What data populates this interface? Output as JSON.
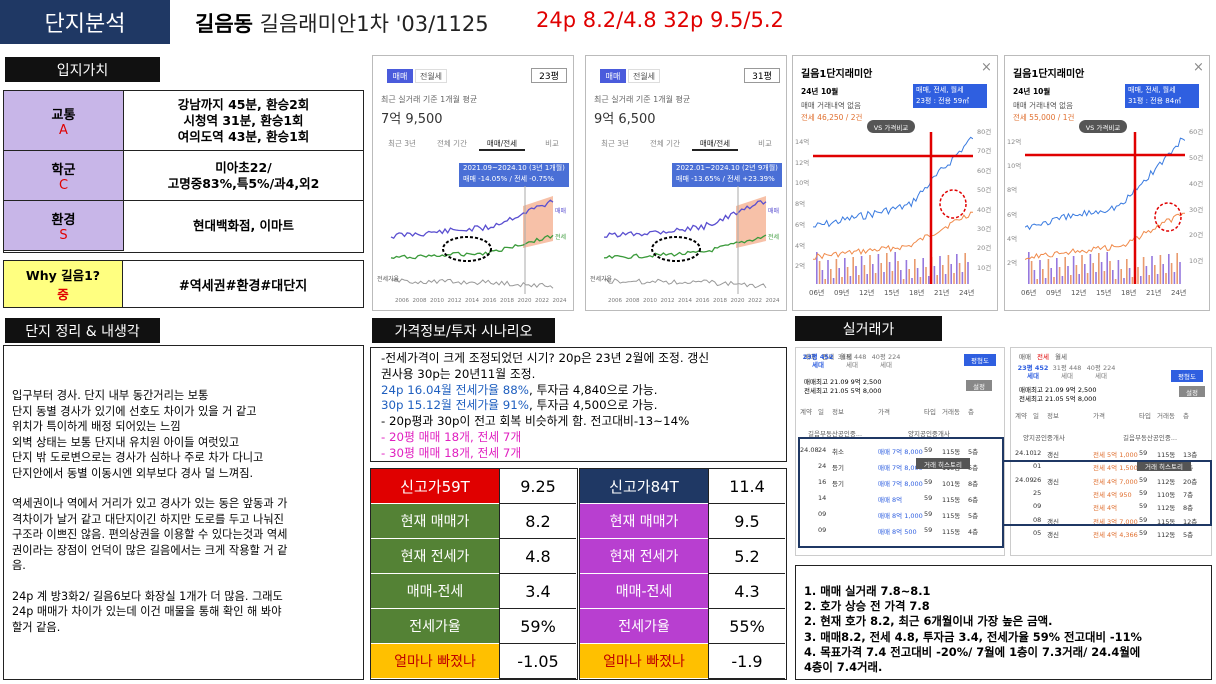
{
  "header": {
    "badge": "단지분석",
    "title_bold": "길음동",
    "title_rest": "길음래미안1차 '03/1125",
    "prices": "24p 8.2/4.8 32p 9.5/5.2"
  },
  "location": {
    "heading": "입지가치",
    "rows": [
      {
        "label": "교통",
        "grade": "A",
        "lines": [
          "강남까지 45분, 환승2회",
          "시청역 31분, 환승1회",
          "여의도역 43분, 환승1회"
        ]
      },
      {
        "label": "학군",
        "grade": "C",
        "lines": [
          "미아초22/",
          "고명중83%,특5%/과4,외2"
        ]
      },
      {
        "label": "환경",
        "grade": "S",
        "lines": [
          "현대백화점, 이마트"
        ]
      }
    ],
    "why": {
      "label": "Why 길음1?",
      "grade": "중",
      "value": "#역세권#환경#대단지"
    }
  },
  "notes": {
    "heading": "단지 정리 & 내생각",
    "paragraphs": [
      [
        "입구부터 경사. 단지 내부 동간거리는 보통",
        "단지 동별 경사가 있기에 선호도 차이가 있을 거 같고",
        "위치가 특이하게 배정 되어있는 느낌",
        "외벽 상태는 보통 단지내 유치원 아이들 여럿있고",
        "단지 밖 도로변으로는 경사가 심하나 주로 차가 다니고",
        "단지안에서 동별 이동시엔 외부보다 경사 덜 느껴짐."
      ],
      [
        "역세권이나 역에서 거리가 있고 경사가 있는 동은 앞동과 가",
        "격차이가 날거 같고 대단지이긴 하지만 도로를 두고 나눠진",
        "구조라 이쁘진 않음. 편의상권을 이용할 수 있다는것과 역세",
        "권이라는 장점이 언덕이 많은 길음에서는 크게 작용할 거 같",
        "음."
      ],
      [
        "24p 계 방3화2/ 길음6보다 화장실 1개가 더 많음. 그래도",
        "24p 매매가 차이가 있는데 이건 매물을 통해 확인 해 봐야",
        "할거 같음."
      ]
    ]
  },
  "scenario": {
    "heading": "가격정보/투자 시나리오",
    "lines": [
      [
        {
          "text": "-전세가격이 크게 조정되었던 시기? 20p은 23년 2월에 조정. 갱신",
          "color": "#000000"
        }
      ],
      [
        {
          "text": "권사용 30p는 20년11월 조정.",
          "color": "#000000"
        }
      ],
      [
        {
          "text": "24p 16.04월 전세가율 88%",
          "color": "#1f5fbf"
        },
        {
          "text": ", 투자금 4,840으로 가능.",
          "color": "#000000"
        }
      ],
      [
        {
          "text": "30p 15.12월 전세가율 91%",
          "color": "#1f5fbf"
        },
        {
          "text": ", 투자금 4,500으로 가능.",
          "color": "#000000"
        }
      ],
      [
        {
          "text": "- 20p평과 30p이 전고 회복 비슷하게 함. 전고대비-13~14%",
          "color": "#000000"
        }
      ],
      [
        {
          "text": "-  20평 매매 18개, 전세 7개",
          "color": "#e020c0"
        }
      ],
      [
        {
          "text": "-  30평 매매 18개, 전세 7개",
          "color": "#e020c0"
        }
      ]
    ]
  },
  "tables": [
    {
      "rows": [
        {
          "label": "신고가59T",
          "value": "9.25",
          "color": "#e00000"
        },
        {
          "label": "현재 매매가",
          "value": "8.2",
          "color": "#548235"
        },
        {
          "label": "현재 전세가",
          "value": "4.8",
          "color": "#548235"
        },
        {
          "label": "매매-전세",
          "value": "3.4",
          "color": "#548235"
        },
        {
          "label": "전세가율",
          "value": "59%",
          "color": "#548235"
        },
        {
          "label": "얼마나 빠졌나",
          "value": "-1.05",
          "color": "#ffc000"
        }
      ]
    },
    {
      "rows": [
        {
          "label": "신고가84T",
          "value": "11.4",
          "color": "#1f3864"
        },
        {
          "label": "현재 매매가",
          "value": "9.5",
          "color": "#b83fd0"
        },
        {
          "label": "현재 전세가",
          "value": "5.2",
          "color": "#b83fd0"
        },
        {
          "label": "매매-전세",
          "value": "4.3",
          "color": "#b83fd0"
        },
        {
          "label": "전세가율",
          "value": "55%",
          "color": "#b83fd0"
        },
        {
          "label": "얼마나 빠졌나",
          "value": "-1.9",
          "color": "#ffc000"
        }
      ]
    }
  ],
  "price_panels": [
    {
      "tab_sale": "매매",
      "tab_rent": "전월세",
      "size": "23평",
      "subtitle": "최근 실거래 기준 1개월 평균",
      "price": "7억 9,500",
      "tabs": [
        "최근 3년",
        "전체 기간",
        "매매/전세",
        "비교"
      ],
      "tooltip_period": "2021.09~2024.10 (3년 1개월)",
      "tooltip_change": "매매 -14.05% / 전세 -0.75%",
      "label_sale": "매매",
      "label_rent": "전세",
      "label_ratio": "전세가율",
      "years": [
        "2006",
        "2008",
        "2010",
        "2012",
        "2014",
        "2016",
        "2018",
        "2020",
        "2022",
        "2024"
      ]
    },
    {
      "tab_sale": "매매",
      "tab_rent": "전월세",
      "size": "31평",
      "subtitle": "최근 실거래 기준 1개월 평균",
      "price": "9억 6,500",
      "tabs": [
        "최근 3년",
        "전체 기간",
        "매매/전세",
        "비교"
      ],
      "tooltip_period": "2022.01~2024.10 (2년 9개월)",
      "tooltip_change": "매매 -13.65% / 전세 +23.39%",
      "label_sale": "매매",
      "label_rent": "전세",
      "label_ratio": "전세가율",
      "years": [
        "2006",
        "2008",
        "2010",
        "2012",
        "2014",
        "2016",
        "2018",
        "2020",
        "2022",
        "2024"
      ]
    }
  ],
  "trade_panels": [
    {
      "title": "길음1단지래미안",
      "date": "24년 10월",
      "sale": "매매 거래내역 없음",
      "rent": "전세 46,250 / 2건",
      "selector": "매매, 전세, 월세",
      "size": "23평 : 전용 59㎡",
      "compare": "VS 가격비교",
      "left_axis": [
        "14억",
        "12억",
        "10억",
        "8억",
        "6억",
        "4억",
        "2억"
      ],
      "right_axis": [
        "80건",
        "70건",
        "60건",
        "50건",
        "40건",
        "30건",
        "20건",
        "10건"
      ],
      "years": [
        "06년",
        "09년",
        "12년",
        "15년",
        "18년",
        "21년",
        "24년"
      ]
    },
    {
      "title": "길음1단지래미안",
      "date": "24년 10월",
      "sale": "매매 거래내역 없음",
      "rent": "전세 55,000 / 1건",
      "selector": "매매, 전세, 월세",
      "size": "31평 : 전용 84㎡",
      "compare": "VS 가격비교",
      "left_axis": [
        "12억",
        "10억",
        "8억",
        "6억",
        "4억",
        "2억"
      ],
      "right_axis": [
        "60건",
        "50건",
        "40건",
        "30건",
        "20건",
        "10건"
      ],
      "years": [
        "06년",
        "09년",
        "12년",
        "15년",
        "18년",
        "21년",
        "24년"
      ]
    }
  ],
  "deals": {
    "heading": "실거래가",
    "panels": [
      {
        "tabs": [
          "매매",
          "전세",
          "월세"
        ],
        "sizes": [
          "23평 452세대",
          "31평 448세대",
          "40평 224세대"
        ],
        "button": "평형도",
        "high_sale": "매매최고 21.09 9억 2,500",
        "high_rent": "전세최고 21.05 5억 8,000",
        "setting": "설정",
        "columns": [
          "계약",
          "일",
          "정보",
          "가격",
          "타입",
          "거래동",
          "층"
        ],
        "agents": [
          "길음부동산공인중...",
          "양지공인중개사"
        ],
        "tooltip": "거래 히스토리",
        "rows": [
          [
            "24.08",
            "24",
            "취소",
            "매매 7억 8,000",
            "59",
            "115동",
            "5층"
          ],
          [
            "",
            "24",
            "등기",
            "매매 7억 8,000",
            "59",
            "115동",
            "5층"
          ],
          [
            "",
            "16",
            "등기",
            "매매 7억 8,000",
            "59",
            "101동",
            "8층"
          ],
          [
            "",
            "14",
            "",
            "매매 8억",
            "59",
            "115동",
            "6층"
          ],
          [
            "",
            "09",
            "",
            "매매 8억 1,000",
            "59",
            "115동",
            "5층"
          ],
          [
            "",
            "09",
            "",
            "매매 8억 500",
            "59",
            "115동",
            "4층"
          ]
        ]
      },
      {
        "tabs": [
          "매매",
          "전세",
          "월세"
        ],
        "sizes": [
          "23평 452세대",
          "31평 448세대",
          "40평 224세대"
        ],
        "button": "평형도",
        "high_sale": "매매최고 21.09 9억 2,500",
        "high_rent": "전세최고 21.05 5억 8,000",
        "setting": "설정",
        "columns": [
          "계약",
          "일",
          "정보",
          "가격",
          "타입",
          "거래동",
          "층"
        ],
        "agents": [
          "양지공인중개사",
          "길음부동산공인중..."
        ],
        "tooltip": "거래 히스토리",
        "rows": [
          [
            "24.10",
            "12",
            "갱신",
            "전세 5억 1,000",
            "59",
            "115동",
            "13층"
          ],
          [
            "",
            "01",
            "",
            "전세 4억 1,500",
            "59",
            "115동",
            "9층"
          ],
          [
            "24.09",
            "26",
            "갱신",
            "전세 4억 7,000",
            "59",
            "112동",
            "20층"
          ],
          [
            "",
            "25",
            "",
            "전세 4억 950",
            "59",
            "110동",
            "7층"
          ],
          [
            "",
            "09",
            "",
            "전세 4억",
            "59",
            "112동",
            "8층"
          ],
          [
            "",
            "08",
            "갱신",
            "전세 3억 7,000",
            "59",
            "115동",
            "12층"
          ],
          [
            "",
            "05",
            "갱신",
            "전세 4억 4,366",
            "59",
            "112동",
            "5층"
          ]
        ]
      }
    ]
  },
  "summary": [
    "1. 매매 실거래 7.8~8.1",
    "2. 호가 상승 전 가격 7.8",
    "2. 현재 호가 8.2, 최근 6개월이내 가장 높은 금액.",
    "3. 매매8.2, 전세 4.8, 투자금 3.4, 전세가율 59% 전고대비 -11%",
    "4. 목표가격 7.4 전고대비 -20%/ 7월에 1층이 7.3거래/ 24.4월에",
    "4층이 7.4거래."
  ]
}
